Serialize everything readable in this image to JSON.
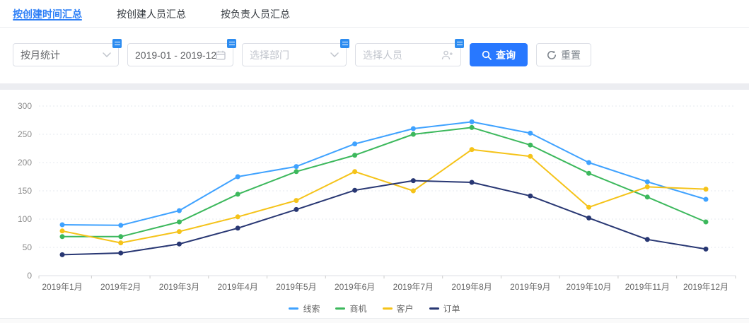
{
  "tabs": [
    {
      "label": "按创建时间汇总",
      "active": true
    },
    {
      "label": "按创建人员汇总",
      "active": false
    },
    {
      "label": "按负责人员汇总",
      "active": false
    }
  ],
  "filters": {
    "stat_mode": {
      "value": "按月统计",
      "icon": "chevron-down-icon"
    },
    "date_range": {
      "value": "2019-01 - 2019-12",
      "icon": "calendar-icon"
    },
    "department": {
      "placeholder": "选择部门",
      "icon": "chevron-down-icon"
    },
    "person": {
      "placeholder": "选择人员",
      "icon": "user-add-icon"
    },
    "search_button": "查询",
    "reset_button": "重置"
  },
  "colors": {
    "accent": "#2D7FF7",
    "button_primary": "#2878FF",
    "field_badge": "#2D8CF0"
  },
  "chart_data": {
    "type": "line",
    "title": "",
    "xlabel": "",
    "ylabel": "",
    "categories": [
      "2019年1月",
      "2019年2月",
      "2019年3月",
      "2019年4月",
      "2019年5月",
      "2019年6月",
      "2019年7月",
      "2019年8月",
      "2019年9月",
      "2019年10月",
      "2019年11月",
      "2019年12月"
    ],
    "series": [
      {
        "name": "线索",
        "color": "#3FA2FF",
        "values": [
          90,
          89,
          115,
          175,
          193,
          233,
          260,
          272,
          252,
          200,
          166,
          135
        ]
      },
      {
        "name": "商机",
        "color": "#3CB85C",
        "values": [
          69,
          69,
          95,
          144,
          184,
          213,
          250,
          262,
          231,
          181,
          139,
          95
        ]
      },
      {
        "name": "客户",
        "color": "#F5C319",
        "values": [
          79,
          58,
          78,
          104,
          133,
          184,
          150,
          223,
          211,
          121,
          157,
          153
        ]
      },
      {
        "name": "订单",
        "color": "#283773",
        "values": [
          37,
          40,
          56,
          84,
          117,
          151,
          168,
          165,
          141,
          102,
          64,
          47
        ]
      }
    ],
    "ylim": [
      0,
      300
    ],
    "y_ticks": [
      0,
      50,
      100,
      150,
      200,
      250,
      300
    ],
    "grid": "dotted-horizontal",
    "legend_position": "bottom"
  }
}
